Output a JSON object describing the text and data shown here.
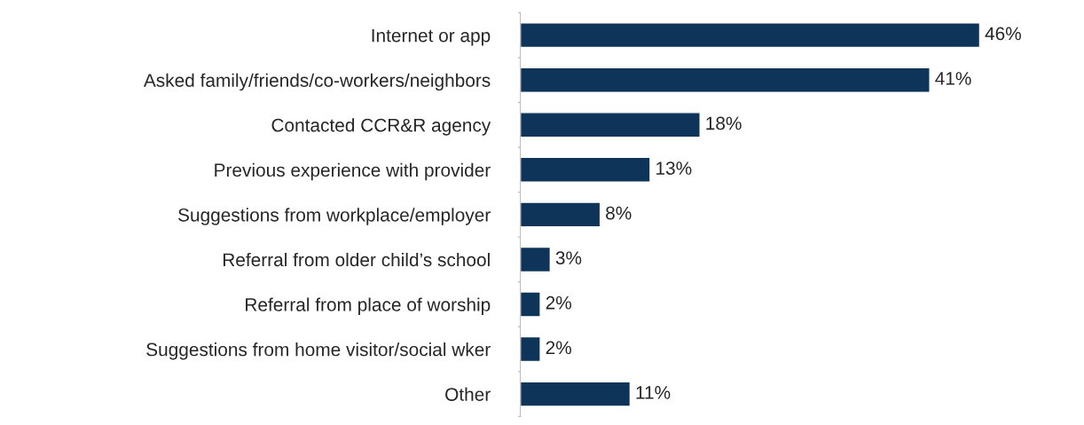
{
  "chart_data": {
    "type": "bar",
    "orientation": "horizontal",
    "categories": [
      "Internet or app",
      "Asked family/friends/co-workers/neighbors",
      "Contacted CCR&R agency",
      "Previous experience with provider",
      "Suggestions from workplace/employer",
      "Referral from older child’s school",
      "Referral from place of worship",
      "Suggestions from home visitor/social wker",
      "Other"
    ],
    "values": [
      46,
      41,
      18,
      13,
      8,
      3,
      2,
      2,
      11
    ],
    "value_labels": [
      "46%",
      "41%",
      "18%",
      "13%",
      "8%",
      "3%",
      "2%",
      "2%",
      "11%"
    ],
    "color": "#0e3559",
    "grid": false,
    "legend": false
  }
}
